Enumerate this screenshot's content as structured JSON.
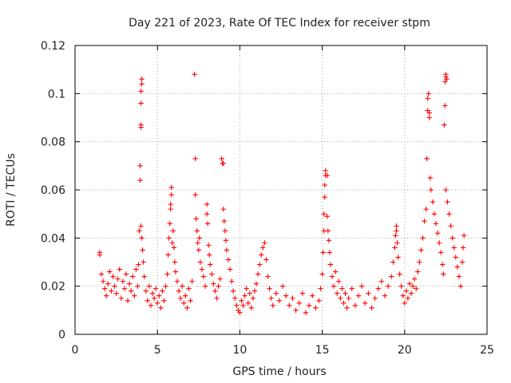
{
  "chart_data": {
    "type": "scatter",
    "title": "Day 221 of 2023, Rate Of TEC Index for receiver stpm",
    "xlabel": "GPS time / hours",
    "ylabel": "ROTI / TECUs",
    "xlim": [
      0,
      25
    ],
    "ylim": [
      0,
      0.12
    ],
    "xticks": [
      0,
      5,
      10,
      15,
      20,
      25
    ],
    "xtick_labels": [
      "0",
      "5",
      "10",
      "15",
      "20",
      "25"
    ],
    "yticks": [
      0,
      0.02,
      0.04,
      0.06,
      0.08,
      0.1,
      0.12
    ],
    "ytick_labels": [
      "0",
      "0.02",
      "0.04",
      "0.06",
      "0.08",
      "0.1",
      "0.12"
    ],
    "grid": true,
    "marker": "+",
    "color": "#ff0000",
    "series": [
      {
        "name": "stpm",
        "points": [
          [
            1.5,
            0.034
          ],
          [
            1.5,
            0.033
          ],
          [
            1.6,
            0.025
          ],
          [
            1.7,
            0.022
          ],
          [
            1.8,
            0.019
          ],
          [
            1.9,
            0.016
          ],
          [
            2.0,
            0.021
          ],
          [
            2.1,
            0.026
          ],
          [
            2.2,
            0.018
          ],
          [
            2.3,
            0.024
          ],
          [
            2.4,
            0.02
          ],
          [
            2.5,
            0.017
          ],
          [
            2.6,
            0.023
          ],
          [
            2.7,
            0.027
          ],
          [
            2.8,
            0.015
          ],
          [
            2.9,
            0.022
          ],
          [
            3.0,
            0.019
          ],
          [
            3.1,
            0.025
          ],
          [
            3.2,
            0.014
          ],
          [
            3.3,
            0.021
          ],
          [
            3.4,
            0.018
          ],
          [
            3.5,
            0.024
          ],
          [
            3.6,
            0.016
          ],
          [
            3.7,
            0.027
          ],
          [
            3.8,
            0.02
          ],
          [
            3.85,
            0.029
          ],
          [
            3.9,
            0.043
          ],
          [
            3.95,
            0.064
          ],
          [
            3.95,
            0.07
          ],
          [
            4.0,
            0.086
          ],
          [
            4.0,
            0.087
          ],
          [
            4.0,
            0.096
          ],
          [
            4.0,
            0.101
          ],
          [
            4.05,
            0.104
          ],
          [
            4.05,
            0.106
          ],
          [
            4.0,
            0.045
          ],
          [
            4.05,
            0.04
          ],
          [
            4.1,
            0.035
          ],
          [
            4.15,
            0.03
          ],
          [
            4.2,
            0.024
          ],
          [
            4.3,
            0.018
          ],
          [
            4.4,
            0.014
          ],
          [
            4.5,
            0.02
          ],
          [
            4.6,
            0.012
          ],
          [
            4.7,
            0.017
          ],
          [
            4.8,
            0.015
          ],
          [
            4.9,
            0.019
          ],
          [
            5.0,
            0.013
          ],
          [
            5.1,
            0.016
          ],
          [
            5.2,
            0.011
          ],
          [
            5.3,
            0.018
          ],
          [
            5.4,
            0.014
          ],
          [
            5.5,
            0.02
          ],
          [
            5.6,
            0.025
          ],
          [
            5.65,
            0.033
          ],
          [
            5.7,
            0.04
          ],
          [
            5.75,
            0.046
          ],
          [
            5.8,
            0.052
          ],
          [
            5.8,
            0.054
          ],
          [
            5.85,
            0.058
          ],
          [
            5.85,
            0.061
          ],
          [
            5.9,
            0.038
          ],
          [
            5.95,
            0.043
          ],
          [
            6.0,
            0.036
          ],
          [
            6.05,
            0.03
          ],
          [
            6.1,
            0.026
          ],
          [
            6.2,
            0.022
          ],
          [
            6.3,
            0.018
          ],
          [
            6.4,
            0.015
          ],
          [
            6.5,
            0.02
          ],
          [
            6.6,
            0.013
          ],
          [
            6.7,
            0.016
          ],
          [
            6.8,
            0.011
          ],
          [
            6.9,
            0.019
          ],
          [
            7.0,
            0.014
          ],
          [
            7.1,
            0.022
          ],
          [
            7.25,
            0.108
          ],
          [
            7.3,
            0.073
          ],
          [
            7.3,
            0.058
          ],
          [
            7.35,
            0.048
          ],
          [
            7.4,
            0.043
          ],
          [
            7.45,
            0.038
          ],
          [
            7.5,
            0.035
          ],
          [
            7.55,
            0.04
          ],
          [
            7.6,
            0.03
          ],
          [
            7.7,
            0.027
          ],
          [
            7.8,
            0.024
          ],
          [
            7.9,
            0.02
          ],
          [
            8.0,
            0.05
          ],
          [
            8.0,
            0.054
          ],
          [
            8.05,
            0.046
          ],
          [
            8.1,
            0.037
          ],
          [
            8.15,
            0.033
          ],
          [
            8.2,
            0.029
          ],
          [
            8.3,
            0.025
          ],
          [
            8.4,
            0.021
          ],
          [
            8.5,
            0.018
          ],
          [
            8.6,
            0.015
          ],
          [
            8.7,
            0.02
          ],
          [
            8.8,
            0.023
          ],
          [
            8.9,
            0.073
          ],
          [
            8.95,
            0.071
          ],
          [
            9.0,
            0.071
          ],
          [
            9.0,
            0.052
          ],
          [
            9.05,
            0.047
          ],
          [
            9.1,
            0.043
          ],
          [
            9.15,
            0.039
          ],
          [
            9.2,
            0.035
          ],
          [
            9.3,
            0.031
          ],
          [
            9.4,
            0.027
          ],
          [
            9.5,
            0.022
          ],
          [
            9.6,
            0.018
          ],
          [
            9.7,
            0.015
          ],
          [
            9.8,
            0.012
          ],
          [
            9.9,
            0.01
          ],
          [
            10.0,
            0.009
          ],
          [
            10.1,
            0.014
          ],
          [
            10.2,
            0.012
          ],
          [
            10.3,
            0.016
          ],
          [
            10.4,
            0.019
          ],
          [
            10.5,
            0.013
          ],
          [
            10.6,
            0.017
          ],
          [
            10.7,
            0.011
          ],
          [
            10.8,
            0.015
          ],
          [
            10.9,
            0.018
          ],
          [
            11.0,
            0.021
          ],
          [
            11.1,
            0.025
          ],
          [
            11.2,
            0.029
          ],
          [
            11.3,
            0.033
          ],
          [
            11.4,
            0.036
          ],
          [
            11.5,
            0.038
          ],
          [
            11.6,
            0.031
          ],
          [
            11.7,
            0.024
          ],
          [
            11.8,
            0.019
          ],
          [
            11.9,
            0.015
          ],
          [
            12.0,
            0.012
          ],
          [
            12.2,
            0.017
          ],
          [
            12.4,
            0.014
          ],
          [
            12.6,
            0.02
          ],
          [
            12.8,
            0.016
          ],
          [
            13.0,
            0.012
          ],
          [
            13.2,
            0.015
          ],
          [
            13.4,
            0.01
          ],
          [
            13.6,
            0.013
          ],
          [
            13.8,
            0.017
          ],
          [
            14.0,
            0.009
          ],
          [
            14.2,
            0.012
          ],
          [
            14.4,
            0.016
          ],
          [
            14.6,
            0.011
          ],
          [
            14.8,
            0.014
          ],
          [
            14.9,
            0.019
          ],
          [
            15.0,
            0.025
          ],
          [
            15.05,
            0.034
          ],
          [
            15.1,
            0.043
          ],
          [
            15.1,
            0.05
          ],
          [
            15.15,
            0.057
          ],
          [
            15.15,
            0.062
          ],
          [
            15.2,
            0.066
          ],
          [
            15.2,
            0.068
          ],
          [
            15.3,
            0.066
          ],
          [
            15.3,
            0.049
          ],
          [
            15.35,
            0.043
          ],
          [
            15.4,
            0.039
          ],
          [
            15.45,
            0.034
          ],
          [
            15.5,
            0.029
          ],
          [
            15.6,
            0.024
          ],
          [
            15.7,
            0.02
          ],
          [
            15.8,
            0.026
          ],
          [
            15.9,
            0.017
          ],
          [
            16.0,
            0.022
          ],
          [
            16.1,
            0.015
          ],
          [
            16.2,
            0.019
          ],
          [
            16.3,
            0.013
          ],
          [
            16.4,
            0.017
          ],
          [
            16.5,
            0.011
          ],
          [
            16.6,
            0.015
          ],
          [
            16.8,
            0.019
          ],
          [
            17.0,
            0.012
          ],
          [
            17.2,
            0.016
          ],
          [
            17.4,
            0.02
          ],
          [
            17.6,
            0.013
          ],
          [
            17.8,
            0.017
          ],
          [
            18.0,
            0.011
          ],
          [
            18.2,
            0.015
          ],
          [
            18.4,
            0.019
          ],
          [
            18.6,
            0.022
          ],
          [
            18.8,
            0.016
          ],
          [
            19.0,
            0.02
          ],
          [
            19.2,
            0.024
          ],
          [
            19.3,
            0.03
          ],
          [
            19.4,
            0.036
          ],
          [
            19.45,
            0.041
          ],
          [
            19.5,
            0.045
          ],
          [
            19.5,
            0.043
          ],
          [
            19.55,
            0.038
          ],
          [
            19.6,
            0.032
          ],
          [
            19.7,
            0.025
          ],
          [
            19.8,
            0.02
          ],
          [
            19.9,
            0.016
          ],
          [
            20.0,
            0.013
          ],
          [
            20.1,
            0.018
          ],
          [
            20.2,
            0.015
          ],
          [
            20.3,
            0.021
          ],
          [
            20.4,
            0.017
          ],
          [
            20.5,
            0.02
          ],
          [
            20.6,
            0.023
          ],
          [
            20.7,
            0.019
          ],
          [
            20.8,
            0.026
          ],
          [
            20.9,
            0.03
          ],
          [
            21.0,
            0.035
          ],
          [
            21.1,
            0.04
          ],
          [
            21.2,
            0.047
          ],
          [
            21.3,
            0.052
          ],
          [
            21.35,
            0.073
          ],
          [
            21.4,
            0.093
          ],
          [
            21.4,
            0.098
          ],
          [
            21.45,
            0.1
          ],
          [
            21.5,
            0.092
          ],
          [
            21.5,
            0.09
          ],
          [
            21.55,
            0.065
          ],
          [
            21.6,
            0.06
          ],
          [
            21.7,
            0.055
          ],
          [
            21.8,
            0.05
          ],
          [
            21.9,
            0.046
          ],
          [
            22.0,
            0.042
          ],
          [
            22.1,
            0.038
          ],
          [
            22.2,
            0.034
          ],
          [
            22.3,
            0.029
          ],
          [
            22.35,
            0.025
          ],
          [
            22.4,
            0.087
          ],
          [
            22.45,
            0.095
          ],
          [
            22.45,
            0.105
          ],
          [
            22.5,
            0.107
          ],
          [
            22.5,
            0.108
          ],
          [
            22.55,
            0.106
          ],
          [
            22.5,
            0.06
          ],
          [
            22.6,
            0.055
          ],
          [
            22.7,
            0.05
          ],
          [
            22.8,
            0.045
          ],
          [
            22.9,
            0.04
          ],
          [
            23.0,
            0.036
          ],
          [
            23.1,
            0.032
          ],
          [
            23.2,
            0.028
          ],
          [
            23.3,
            0.024
          ],
          [
            23.4,
            0.02
          ],
          [
            23.5,
            0.03
          ],
          [
            23.55,
            0.036
          ],
          [
            23.6,
            0.041
          ]
        ]
      }
    ]
  }
}
